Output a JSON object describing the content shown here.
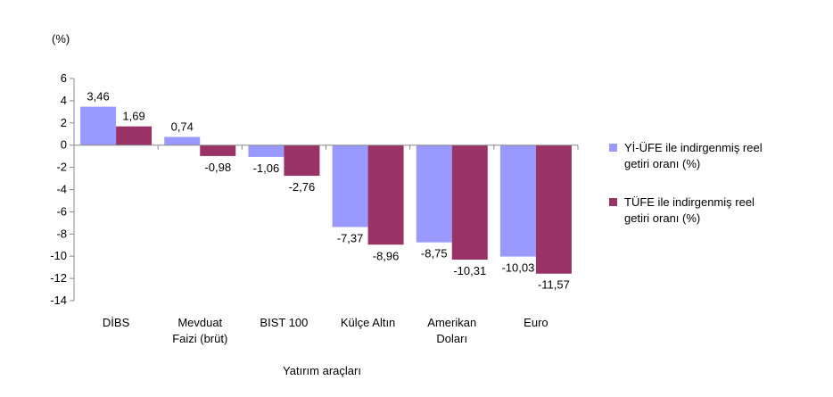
{
  "chart_data": {
    "type": "bar",
    "unit_label": "(%)",
    "xlabel": "Yatırım araçları",
    "ylabel": "",
    "ylim": [
      -14,
      6
    ],
    "yticks": [
      6,
      4,
      2,
      0,
      -2,
      -4,
      -6,
      -8,
      -10,
      -12,
      -14
    ],
    "categories": [
      [
        "DİBS"
      ],
      [
        "Mevduat",
        "Faizi (brüt)"
      ],
      [
        "BIST 100"
      ],
      [
        "Külçe Altın"
      ],
      [
        "Amerikan",
        "Doları"
      ],
      [
        "Euro"
      ]
    ],
    "series": [
      {
        "name": [
          "Yİ-ÜFE ile indirgenmiş reel",
          "getiri oranı (%)"
        ],
        "color": "#9999ff",
        "values": [
          3.46,
          0.74,
          -1.06,
          -7.37,
          -8.75,
          -10.03
        ],
        "labels": [
          "3,46",
          "0,74",
          "-1,06",
          "-7,37",
          "-8,75",
          "-10,03"
        ]
      },
      {
        "name": [
          "TÜFE ile indirgenmiş reel",
          "getiri oranı (%)"
        ],
        "color": "#993366",
        "values": [
          1.69,
          -0.98,
          -2.76,
          -8.96,
          -10.31,
          -11.57
        ],
        "labels": [
          "1,69",
          "-0,98",
          "-2,76",
          "-8,96",
          "-10,31",
          "-11,57"
        ]
      }
    ],
    "grid": false,
    "legend": "right"
  }
}
